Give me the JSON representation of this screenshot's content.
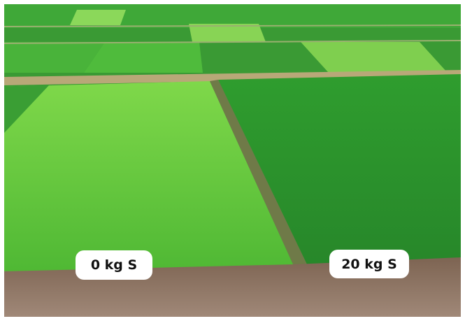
{
  "labels": [
    "0 kg S",
    "20 kg S"
  ]
}
